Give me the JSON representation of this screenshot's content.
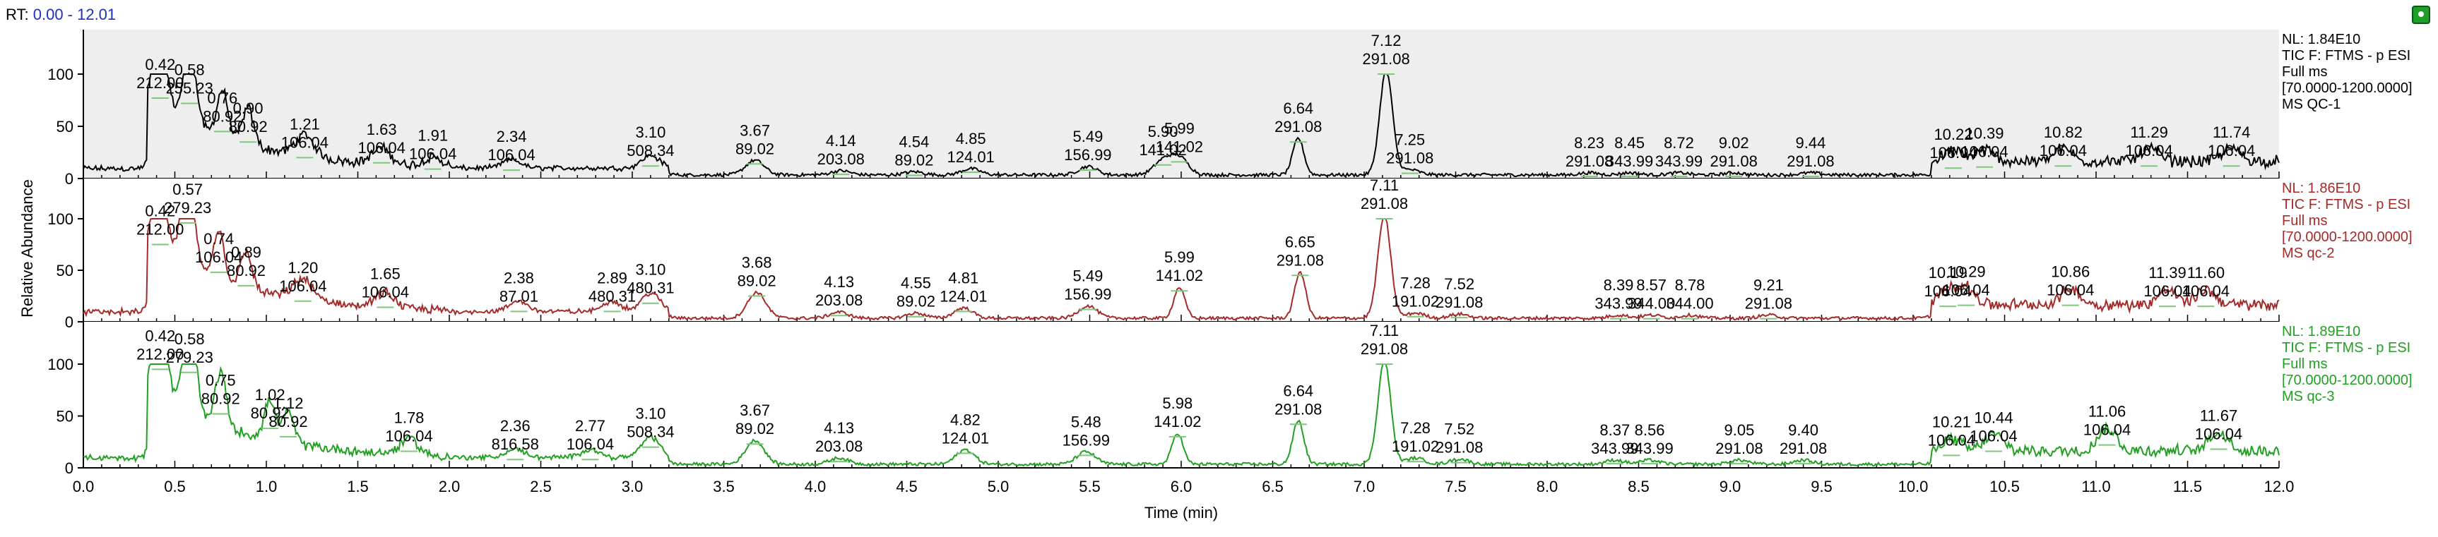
{
  "rt_header": {
    "label": "RT:",
    "range": "0.00 - 12.01"
  },
  "chart_data": {
    "type": "line",
    "x_range": [
      0,
      12
    ],
    "y_range": [
      0,
      100
    ],
    "xlabel": "Time (min)",
    "ylabel": "Relative Abundance",
    "x_ticks": [
      "0.0",
      "0.5",
      "1.0",
      "1.5",
      "2.0",
      "2.5",
      "3.0",
      "3.5",
      "4.0",
      "4.5",
      "5.0",
      "5.5",
      "6.0",
      "6.5",
      "7.0",
      "7.5",
      "8.0",
      "8.5",
      "9.0",
      "9.5",
      "10.0",
      "10.5",
      "11.0",
      "11.5",
      "12.0"
    ],
    "y_ticks": [
      "0",
      "50",
      "100"
    ],
    "panels": [
      {
        "name": "MS QC-1",
        "color": "#000000",
        "background": "#eeeeee",
        "info": [
          "NL: 1.84E10",
          "TIC F: FTMS - p ESI",
          "Full ms",
          "[70.0000-1200.0000]",
          "MS QC-1"
        ],
        "peaks": [
          {
            "rt": "0.42",
            "mz": "212.00",
            "x": 0.42,
            "y": 77
          },
          {
            "rt": "0.58",
            "mz": "255.23",
            "x": 0.58,
            "y": 72
          },
          {
            "rt": "0.76",
            "mz": "80.92",
            "x": 0.76,
            "y": 45
          },
          {
            "rt": "0.90",
            "mz": "80.92",
            "x": 0.9,
            "y": 35
          },
          {
            "rt": "1.21",
            "mz": "106.04",
            "x": 1.21,
            "y": 20
          },
          {
            "rt": "1.63",
            "mz": "106.04",
            "x": 1.63,
            "y": 15
          },
          {
            "rt": "1.91",
            "mz": "106.04",
            "x": 1.91,
            "y": 9
          },
          {
            "rt": "2.34",
            "mz": "106.04",
            "x": 2.34,
            "y": 8
          },
          {
            "rt": "3.10",
            "mz": "508.34",
            "x": 3.1,
            "y": 12
          },
          {
            "rt": "3.67",
            "mz": "89.02",
            "x": 3.67,
            "y": 14
          },
          {
            "rt": "4.14",
            "mz": "203.08",
            "x": 4.14,
            "y": 4
          },
          {
            "rt": "4.54",
            "mz": "89.02",
            "x": 4.54,
            "y": 3
          },
          {
            "rt": "4.85",
            "mz": "124.01",
            "x": 4.85,
            "y": 6
          },
          {
            "rt": "5.49",
            "mz": "156.99",
            "x": 5.49,
            "y": 8
          },
          {
            "rt": "5.90",
            "mz": "141.02",
            "x": 5.9,
            "y": 13
          },
          {
            "rt": "5.99",
            "mz": "141.02",
            "x": 5.99,
            "y": 16
          },
          {
            "rt": "6.64",
            "mz": "291.08",
            "x": 6.64,
            "y": 35
          },
          {
            "rt": "7.12",
            "mz": "291.08",
            "x": 7.12,
            "y": 100
          },
          {
            "rt": "7.25",
            "mz": "291.08",
            "x": 7.25,
            "y": 5
          },
          {
            "rt": "8.23",
            "mz": "291.08",
            "x": 8.23,
            "y": 2
          },
          {
            "rt": "8.45",
            "mz": "343.99",
            "x": 8.45,
            "y": 2
          },
          {
            "rt": "8.72",
            "mz": "343.99",
            "x": 8.72,
            "y": 2
          },
          {
            "rt": "9.02",
            "mz": "291.08",
            "x": 9.02,
            "y": 2
          },
          {
            "rt": "9.44",
            "mz": "291.08",
            "x": 9.44,
            "y": 2
          },
          {
            "rt": "10.22",
            "mz": "106.04",
            "x": 10.22,
            "y": 10
          },
          {
            "rt": "10.39",
            "mz": "106.04",
            "x": 10.39,
            "y": 11
          },
          {
            "rt": "10.82",
            "mz": "106.04",
            "x": 10.82,
            "y": 12
          },
          {
            "rt": "11.29",
            "mz": "106.04",
            "x": 11.29,
            "y": 12
          },
          {
            "rt": "11.74",
            "mz": "106.04",
            "x": 11.74,
            "y": 12
          }
        ]
      },
      {
        "name": "MS qc-2",
        "color": "#a52a2a",
        "background": "#ffffff",
        "info": [
          "NL: 1.86E10",
          "TIC F: FTMS - p ESI",
          "Full ms",
          "[70.0000-1200.0000]",
          "MS qc-2"
        ],
        "peaks": [
          {
            "rt": "0.42",
            "mz": "212.00",
            "x": 0.42,
            "y": 75
          },
          {
            "rt": "0.57",
            "mz": "279.23",
            "x": 0.57,
            "y": 96
          },
          {
            "rt": "0.74",
            "mz": "106.04",
            "x": 0.74,
            "y": 48
          },
          {
            "rt": "0.89",
            "mz": "80.92",
            "x": 0.89,
            "y": 35
          },
          {
            "rt": "1.20",
            "mz": "106.04",
            "x": 1.2,
            "y": 20
          },
          {
            "rt": "1.65",
            "mz": "106.04",
            "x": 1.65,
            "y": 14
          },
          {
            "rt": "2.38",
            "mz": "87.01",
            "x": 2.38,
            "y": 10
          },
          {
            "rt": "2.89",
            "mz": "480.31",
            "x": 2.89,
            "y": 10
          },
          {
            "rt": "3.10",
            "mz": "480.31",
            "x": 3.1,
            "y": 18
          },
          {
            "rt": "3.68",
            "mz": "89.02",
            "x": 3.68,
            "y": 25
          },
          {
            "rt": "4.13",
            "mz": "203.08",
            "x": 4.13,
            "y": 6
          },
          {
            "rt": "4.55",
            "mz": "89.02",
            "x": 4.55,
            "y": 5
          },
          {
            "rt": "4.81",
            "mz": "124.01",
            "x": 4.81,
            "y": 10
          },
          {
            "rt": "5.49",
            "mz": "156.99",
            "x": 5.49,
            "y": 12
          },
          {
            "rt": "5.99",
            "mz": "141.02",
            "x": 5.99,
            "y": 30
          },
          {
            "rt": "6.65",
            "mz": "291.08",
            "x": 6.65,
            "y": 45
          },
          {
            "rt": "7.11",
            "mz": "291.08",
            "x": 7.11,
            "y": 100
          },
          {
            "rt": "7.28",
            "mz": "191.02",
            "x": 7.28,
            "y": 5
          },
          {
            "rt": "7.52",
            "mz": "291.08",
            "x": 7.52,
            "y": 4
          },
          {
            "rt": "8.39",
            "mz": "343.99",
            "x": 8.39,
            "y": 3
          },
          {
            "rt": "8.57",
            "mz": "344.00",
            "x": 8.57,
            "y": 3
          },
          {
            "rt": "8.78",
            "mz": "344.00",
            "x": 8.78,
            "y": 3
          },
          {
            "rt": "9.21",
            "mz": "291.08",
            "x": 9.21,
            "y": 3
          },
          {
            "rt": "10.19",
            "mz": "106.04",
            "x": 10.19,
            "y": 15
          },
          {
            "rt": "10.29",
            "mz": "106.04",
            "x": 10.29,
            "y": 16
          },
          {
            "rt": "10.86",
            "mz": "106.04",
            "x": 10.86,
            "y": 16
          },
          {
            "rt": "11.39",
            "mz": "106.04",
            "x": 11.39,
            "y": 15
          },
          {
            "rt": "11.60",
            "mz": "106.04",
            "x": 11.6,
            "y": 15
          }
        ]
      },
      {
        "name": "MS qc-3",
        "color": "#22a022",
        "background": "#ffffff",
        "info": [
          "NL: 1.89E10",
          "TIC F: FTMS - p ESI",
          "Full ms",
          "[70.0000-1200.0000]",
          "MS qc-3"
        ],
        "peaks": [
          {
            "rt": "0.42",
            "mz": "212.00",
            "x": 0.42,
            "y": 95
          },
          {
            "rt": "0.58",
            "mz": "279.23",
            "x": 0.58,
            "y": 92
          },
          {
            "rt": "0.75",
            "mz": "80.92",
            "x": 0.75,
            "y": 52
          },
          {
            "rt": "1.02",
            "mz": "80.92",
            "x": 1.02,
            "y": 38
          },
          {
            "rt": "1.12",
            "mz": "80.92",
            "x": 1.12,
            "y": 30
          },
          {
            "rt": "1.78",
            "mz": "106.04",
            "x": 1.78,
            "y": 16
          },
          {
            "rt": "2.36",
            "mz": "816.58",
            "x": 2.36,
            "y": 8
          },
          {
            "rt": "2.77",
            "mz": "106.04",
            "x": 2.77,
            "y": 8
          },
          {
            "rt": "3.10",
            "mz": "508.34",
            "x": 3.1,
            "y": 20
          },
          {
            "rt": "3.67",
            "mz": "89.02",
            "x": 3.67,
            "y": 23
          },
          {
            "rt": "4.13",
            "mz": "203.08",
            "x": 4.13,
            "y": 6
          },
          {
            "rt": "4.82",
            "mz": "124.01",
            "x": 4.82,
            "y": 14
          },
          {
            "rt": "5.48",
            "mz": "156.99",
            "x": 5.48,
            "y": 12
          },
          {
            "rt": "5.98",
            "mz": "141.02",
            "x": 5.98,
            "y": 30
          },
          {
            "rt": "6.64",
            "mz": "291.08",
            "x": 6.64,
            "y": 42
          },
          {
            "rt": "7.11",
            "mz": "291.08",
            "x": 7.11,
            "y": 100
          },
          {
            "rt": "7.28",
            "mz": "191.02",
            "x": 7.28,
            "y": 6
          },
          {
            "rt": "7.52",
            "mz": "291.08",
            "x": 7.52,
            "y": 5
          },
          {
            "rt": "8.37",
            "mz": "343.99",
            "x": 8.37,
            "y": 4
          },
          {
            "rt": "8.56",
            "mz": "343.99",
            "x": 8.56,
            "y": 4
          },
          {
            "rt": "9.05",
            "mz": "291.08",
            "x": 9.05,
            "y": 4
          },
          {
            "rt": "9.40",
            "mz": "291.08",
            "x": 9.4,
            "y": 4
          },
          {
            "rt": "10.21",
            "mz": "106.04",
            "x": 10.21,
            "y": 12
          },
          {
            "rt": "10.44",
            "mz": "106.04",
            "x": 10.44,
            "y": 16
          },
          {
            "rt": "11.06",
            "mz": "106.04",
            "x": 11.06,
            "y": 22
          },
          {
            "rt": "11.67",
            "mz": "106.04",
            "x": 11.67,
            "y": 18
          }
        ]
      }
    ]
  }
}
